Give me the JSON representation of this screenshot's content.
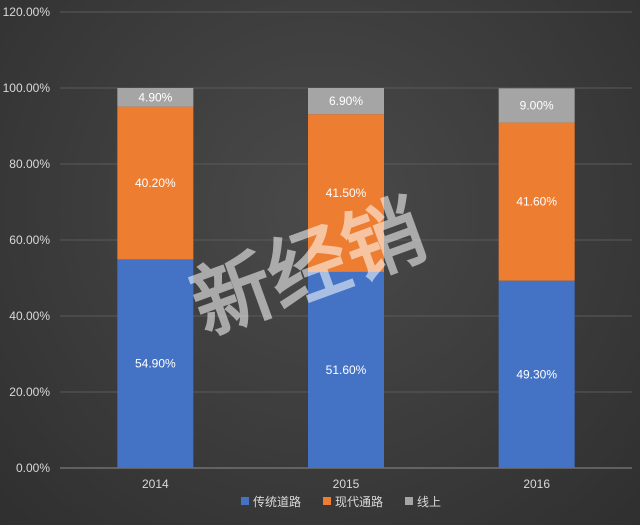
{
  "chart_data": {
    "type": "bar",
    "stacked": true,
    "categories": [
      "2014",
      "2015",
      "2016"
    ],
    "series": [
      {
        "name": "传统道路",
        "values": [
          54.9,
          51.6,
          49.3
        ],
        "labels": [
          "54.90%",
          "51.60%",
          "49.30%"
        ],
        "color": "#4472c4"
      },
      {
        "name": "现代通路",
        "values": [
          40.2,
          41.5,
          41.6
        ],
        "labels": [
          "40.20%",
          "41.50%",
          "41.60%"
        ],
        "color": "#ed7d31"
      },
      {
        "name": "线上",
        "values": [
          4.9,
          6.9,
          9.0
        ],
        "labels": [
          "4.90%",
          "6.90%",
          "9.00%"
        ],
        "color": "#a5a5a5"
      }
    ],
    "ylim": [
      0,
      120
    ],
    "yticks": [
      "0.00%",
      "20.00%",
      "40.00%",
      "60.00%",
      "80.00%",
      "100.00%",
      "120.00%"
    ],
    "grid": true,
    "legend_position": "bottom",
    "watermark": "新经销"
  }
}
